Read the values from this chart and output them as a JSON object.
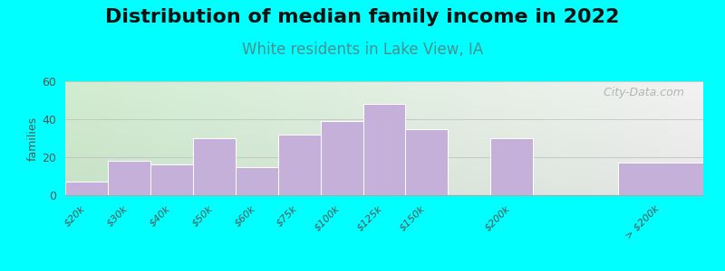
{
  "title": "Distribution of median family income in 2022",
  "subtitle": "White residents in Lake View, IA",
  "ylabel": "families",
  "background_color": "#00FFFF",
  "plot_bg_left_bottom": "#d0edd0",
  "plot_bg_left_top": "#e8f5e8",
  "plot_bg_right_bottom": "#f0f0f0",
  "plot_bg_right_top": "#f8f8f8",
  "bar_color": "#C4B0D8",
  "bar_edge_color": "#ffffff",
  "categories": [
    "$20k",
    "$30k",
    "$40k",
    "$50k",
    "$60k",
    "$75k",
    "$100k",
    "$125k",
    "$150k",
    "$200k",
    "> $200k"
  ],
  "values": [
    7,
    18,
    16,
    30,
    15,
    32,
    39,
    48,
    35,
    30,
    17
  ],
  "bar_lefts": [
    0,
    1,
    2,
    3,
    4,
    5,
    6,
    7,
    8,
    10,
    13
  ],
  "bar_widths": [
    1,
    1,
    1,
    1,
    1,
    1,
    1,
    1,
    1,
    1,
    2
  ],
  "ylim": [
    0,
    60
  ],
  "yticks": [
    0,
    20,
    40,
    60
  ],
  "title_fontsize": 16,
  "subtitle_fontsize": 12,
  "subtitle_color": "#4a9090",
  "watermark": "  City-Data.com",
  "xlim": [
    0,
    15
  ]
}
